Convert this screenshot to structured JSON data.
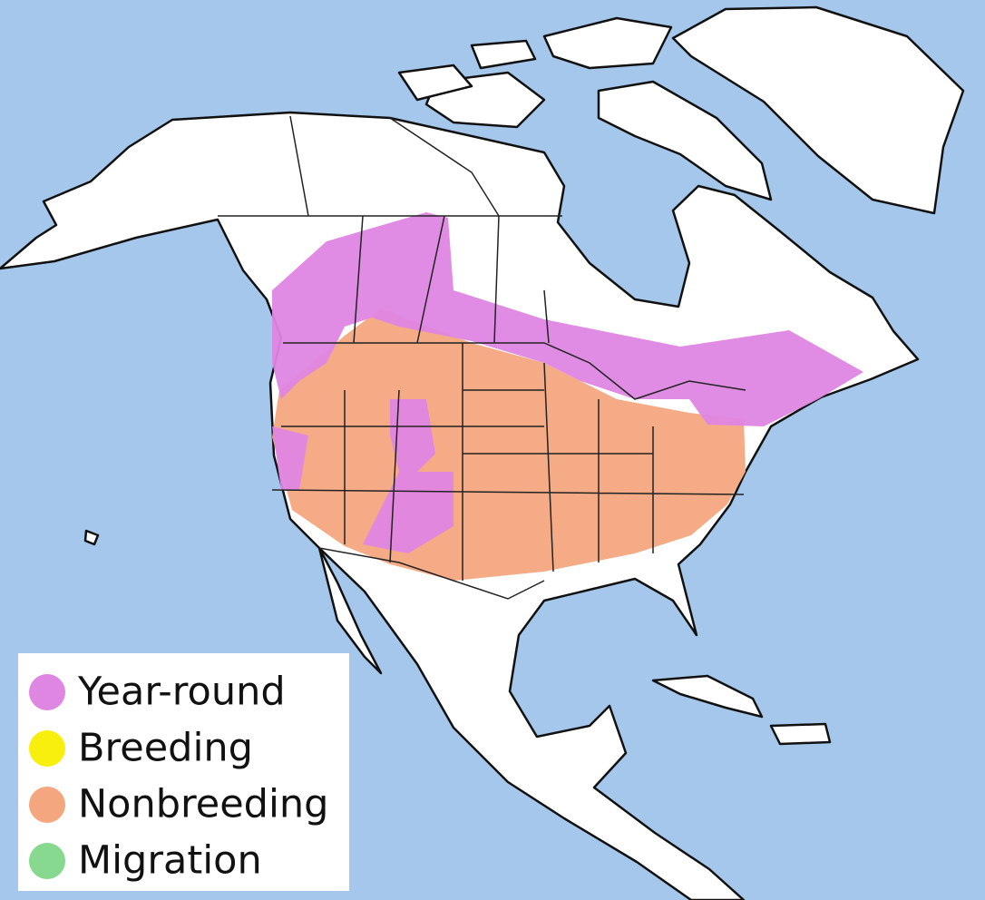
{
  "legend": {
    "items": [
      {
        "label": "Year-round",
        "color": "#df86e3"
      },
      {
        "label": "Breeding",
        "color": "#f9ef0f"
      },
      {
        "label": "Nonbreeding",
        "color": "#f4a77f"
      },
      {
        "label": "Migration",
        "color": "#86d98e"
      }
    ]
  }
}
